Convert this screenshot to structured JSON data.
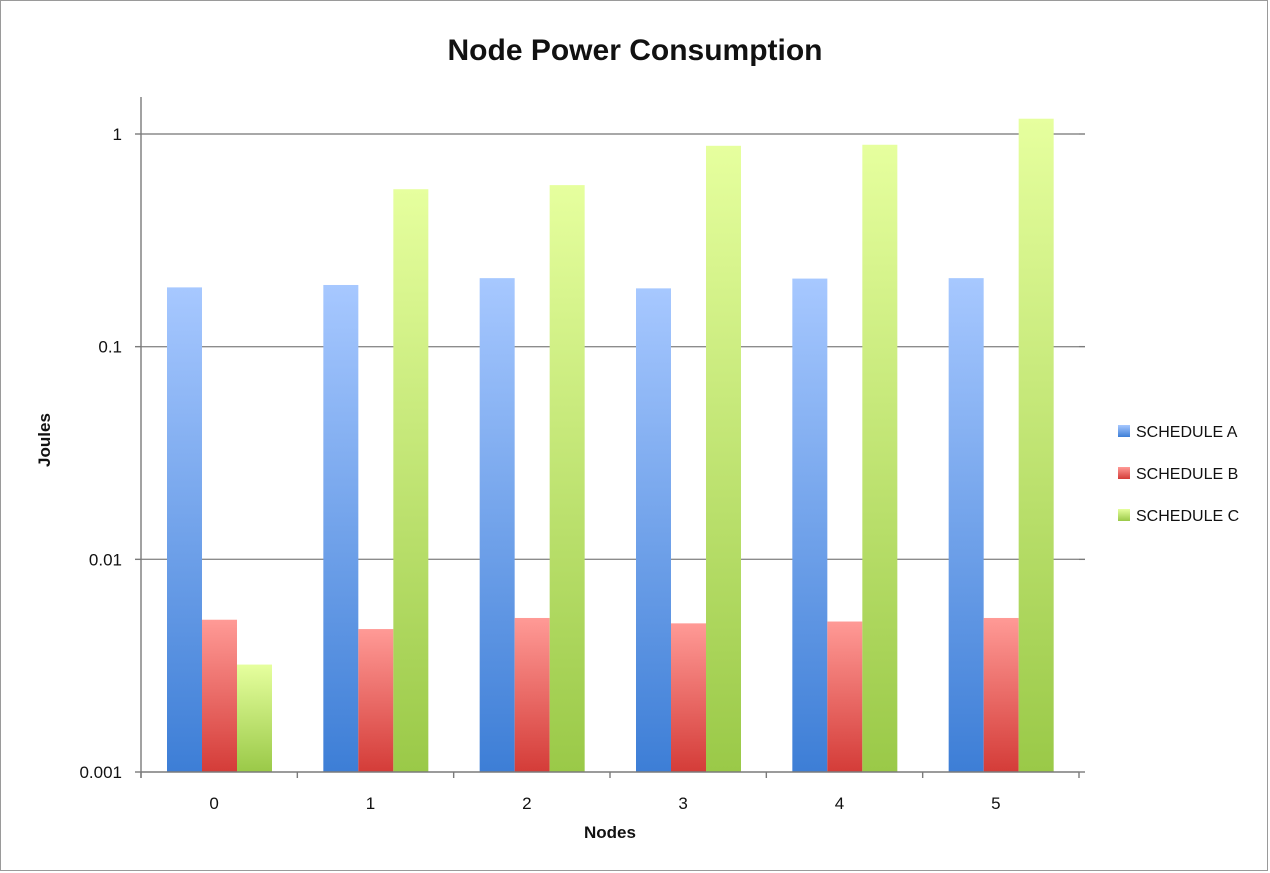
{
  "colors": {
    "schedule_a": "#5b9bea",
    "schedule_b": "#e85f5c",
    "schedule_c": "#b9e46f",
    "grid": "#8c8c8c",
    "axis": "#7a7a7a"
  },
  "chart_data": {
    "type": "bar",
    "title": "Node Power Consumption",
    "xlabel": "Nodes",
    "ylabel": "Joules",
    "scale": "log",
    "ylim": [
      0.001,
      1.5
    ],
    "y_ticks": [
      "0.001",
      "0.01",
      "0.1",
      "1"
    ],
    "grid": true,
    "legend_position": "right",
    "categories": [
      "0",
      "1",
      "2",
      "3",
      "4",
      "5"
    ],
    "series": [
      {
        "name": "SCHEDULE A",
        "values": [
          0.19,
          0.195,
          0.21,
          0.188,
          0.209,
          0.21
        ]
      },
      {
        "name": "SCHEDULE B",
        "values": [
          0.0052,
          0.0047,
          0.0053,
          0.005,
          0.0051,
          0.0053
        ]
      },
      {
        "name": "SCHEDULE C",
        "values": [
          0.0032,
          0.55,
          0.575,
          0.88,
          0.89,
          1.18
        ]
      }
    ]
  }
}
